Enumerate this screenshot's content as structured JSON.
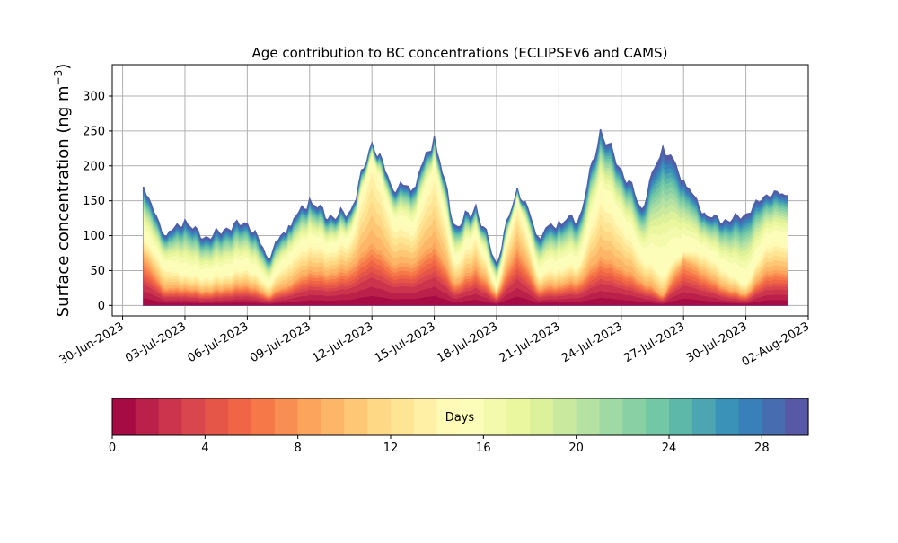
{
  "chart_data": {
    "type": "area",
    "stacked": true,
    "title": "Age contribution to BC concentrations (ECLIPSEv6 and CAMS)",
    "ylabel": "Surface concentration (ng m",
    "ylabel_exponent": "−3",
    "ylabel_close": ")",
    "xlim": [
      "2023-06-29T12:00",
      "2023-08-02T00:00"
    ],
    "ylim": [
      -15,
      345
    ],
    "x_ticks": [
      "2023-06-30",
      "2023-07-03",
      "2023-07-06",
      "2023-07-09",
      "2023-07-12",
      "2023-07-15",
      "2023-07-18",
      "2023-07-21",
      "2023-07-24",
      "2023-07-27",
      "2023-07-30",
      "2023-08-02"
    ],
    "x_tick_labels": [
      "30-Jun-2023",
      "03-Jul-2023",
      "06-Jul-2023",
      "09-Jul-2023",
      "12-Jul-2023",
      "15-Jul-2023",
      "18-Jul-2023",
      "21-Jul-2023",
      "24-Jul-2023",
      "27-Jul-2023",
      "30-Jul-2023",
      "02-Aug-2023"
    ],
    "y_ticks": [
      0,
      50,
      100,
      150,
      200,
      250,
      300
    ],
    "y_tick_labels": [
      "0",
      "50",
      "100",
      "150",
      "200",
      "250",
      "300"
    ],
    "grid": true,
    "x_dates": [
      "2023-07-01",
      "2023-07-02",
      "2023-07-03",
      "2023-07-04",
      "2023-07-05",
      "2023-07-06",
      "2023-07-07",
      "2023-07-08",
      "2023-07-09",
      "2023-07-10",
      "2023-07-11",
      "2023-07-12",
      "2023-07-13",
      "2023-07-14",
      "2023-07-15",
      "2023-07-16",
      "2023-07-17",
      "2023-07-18",
      "2023-07-19",
      "2023-07-20",
      "2023-07-21",
      "2023-07-22",
      "2023-07-23",
      "2023-07-24",
      "2023-07-25",
      "2023-07-26",
      "2023-07-27",
      "2023-07-28",
      "2023-07-29",
      "2023-07-30",
      "2023-07-31",
      "2023-08-01"
    ],
    "series_total": [
      170,
      100,
      120,
      95,
      110,
      120,
      70,
      115,
      150,
      125,
      135,
      235,
      170,
      170,
      240,
      110,
      140,
      60,
      170,
      100,
      120,
      125,
      250,
      195,
      140,
      230,
      180,
      130,
      120,
      130,
      160,
      160
    ],
    "series_young": [
      100,
      55,
      45,
      40,
      45,
      55,
      30,
      65,
      90,
      80,
      95,
      210,
      120,
      110,
      195,
      60,
      100,
      25,
      150,
      45,
      55,
      60,
      160,
      120,
      70,
      45,
      80,
      75,
      50,
      30,
      90,
      90
    ],
    "series_fresh": [
      70,
      25,
      25,
      20,
      25,
      30,
      15,
      30,
      50,
      45,
      55,
      90,
      60,
      60,
      90,
      30,
      55,
      15,
      85,
      25,
      30,
      35,
      70,
      55,
      35,
      15,
      65,
      45,
      25,
      15,
      50,
      50
    ],
    "colorbar": {
      "label": "Days",
      "min": 0,
      "max": 30,
      "levels": 30,
      "ticks": [
        0,
        4,
        8,
        12,
        16,
        20,
        24,
        28
      ],
      "tick_labels": [
        "0",
        "4",
        "8",
        "12",
        "16",
        "20",
        "24",
        "28"
      ],
      "colormap": "Spectral"
    }
  }
}
